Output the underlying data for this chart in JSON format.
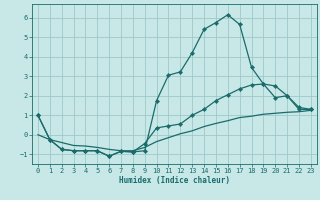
{
  "xlabel": "Humidex (Indice chaleur)",
  "background_color": "#c8e8e8",
  "grid_color": "#a0c8c8",
  "line_color": "#1a6b6b",
  "xlim": [
    -0.5,
    23.5
  ],
  "ylim": [
    -1.5,
    6.7
  ],
  "xticks": [
    0,
    1,
    2,
    3,
    4,
    5,
    6,
    7,
    8,
    9,
    10,
    11,
    12,
    13,
    14,
    15,
    16,
    17,
    18,
    19,
    20,
    21,
    22,
    23
  ],
  "yticks": [
    -1,
    0,
    1,
    2,
    3,
    4,
    5,
    6
  ],
  "curve1_x": [
    0,
    1,
    2,
    3,
    4,
    5,
    6,
    7,
    8,
    9,
    10,
    11,
    12,
    13,
    14,
    15,
    16,
    17,
    18,
    19,
    20,
    21,
    22,
    23
  ],
  "curve1_y": [
    1.0,
    -0.25,
    -0.75,
    -0.82,
    -0.82,
    -0.82,
    -1.1,
    -0.85,
    -0.88,
    -0.82,
    1.75,
    3.05,
    3.22,
    4.2,
    5.4,
    5.75,
    6.15,
    5.65,
    3.45,
    2.6,
    1.9,
    2.0,
    1.3,
    1.3
  ],
  "curve2_x": [
    0,
    1,
    2,
    3,
    4,
    5,
    6,
    7,
    8,
    9,
    10,
    11,
    12,
    13,
    14,
    15,
    16,
    17,
    18,
    19,
    20,
    21,
    22,
    23
  ],
  "curve2_y": [
    1.0,
    -0.25,
    -0.75,
    -0.82,
    -0.82,
    -0.82,
    -1.1,
    -0.85,
    -0.88,
    -0.45,
    0.35,
    0.45,
    0.55,
    1.0,
    1.3,
    1.75,
    2.05,
    2.35,
    2.55,
    2.6,
    2.5,
    2.0,
    1.4,
    1.3
  ],
  "curve3_x": [
    0,
    1,
    2,
    3,
    4,
    5,
    6,
    7,
    8,
    9,
    10,
    11,
    12,
    13,
    14,
    15,
    16,
    17,
    18,
    19,
    20,
    21,
    22,
    23
  ],
  "curve3_y": [
    0.0,
    -0.25,
    -0.4,
    -0.55,
    -0.58,
    -0.65,
    -0.75,
    -0.82,
    -0.82,
    -0.65,
    -0.35,
    -0.15,
    0.05,
    0.2,
    0.42,
    0.58,
    0.72,
    0.88,
    0.95,
    1.05,
    1.1,
    1.15,
    1.18,
    1.25
  ]
}
